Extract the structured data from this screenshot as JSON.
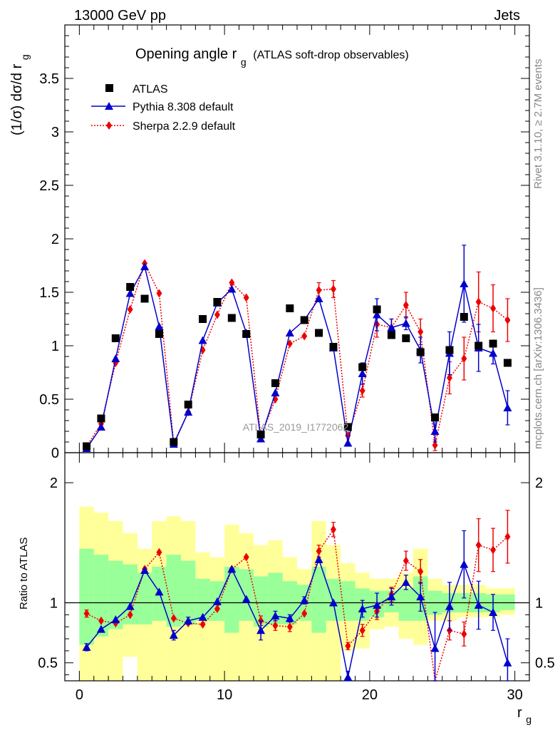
{
  "header": {
    "left": "13000 GeV pp",
    "right": "Jets"
  },
  "side_labels": {
    "top": "Rivet 3.1.10, ≥ 2.7M events",
    "bottom": "mcplots.cern.ch [arXiv:1306.3436]"
  },
  "watermark": "ATLAS_2019_I1772062",
  "chart_data": [
    {
      "type": "line",
      "title_main": "Opening angle r",
      "title_sub": "g",
      "title_extra": "(ATLAS soft-drop observables)",
      "ylabel": "(1/σ) dσ/d r",
      "ylabel_sub": "g",
      "ylim": [
        0,
        4.0
      ],
      "xlim": [
        -1,
        31
      ],
      "yticks": [
        "0",
        "0.5",
        "1",
        "1.5",
        "2",
        "2.5",
        "3",
        "3.5"
      ],
      "yticks_values": [
        0,
        0.5,
        1,
        1.5,
        2,
        2.5,
        3,
        3.5
      ],
      "legend_position": "top-left",
      "x": [
        0.5,
        1.5,
        2.5,
        3.5,
        4.5,
        5.5,
        6.5,
        7.5,
        8.5,
        9.5,
        10.5,
        11.5,
        12.5,
        13.5,
        14.5,
        15.5,
        16.5,
        17.5,
        18.5,
        19.5,
        20.5,
        21.5,
        22.5,
        23.5,
        24.5,
        25.5,
        26.5,
        27.5,
        28.5,
        29.5
      ],
      "series": [
        {
          "name": "ATLAS",
          "color": "#000000",
          "marker": "square",
          "values": [
            0.06,
            0.32,
            1.07,
            1.55,
            1.44,
            1.11,
            0.1,
            0.45,
            1.25,
            1.41,
            1.26,
            1.11,
            0.17,
            0.65,
            1.35,
            1.24,
            1.12,
            0.99,
            0.24,
            0.8,
            1.34,
            1.1,
            1.07,
            0.94,
            0.33,
            0.96,
            1.27,
            1.0,
            1.02,
            0.84
          ]
        },
        {
          "name": "Pythia 8.308 default",
          "color": "#0000cc",
          "marker": "triangle",
          "values": [
            0.04,
            0.24,
            0.88,
            1.49,
            1.74,
            1.18,
            0.08,
            0.38,
            1.05,
            1.4,
            1.53,
            1.12,
            0.13,
            0.56,
            1.12,
            1.24,
            1.44,
            0.98,
            0.09,
            0.74,
            1.29,
            1.17,
            1.21,
            0.96,
            0.2,
            0.93,
            1.58,
            0.98,
            0.93,
            0.42
          ],
          "errors": [
            0,
            0,
            0,
            0,
            0,
            0,
            0,
            0,
            0,
            0,
            0,
            0,
            0,
            0,
            0,
            0,
            0,
            0,
            0,
            0.1,
            0.15,
            0.08,
            0.06,
            0.12,
            0.1,
            0.2,
            0.36,
            0.22,
            0.1,
            0.16
          ]
        },
        {
          "name": "Sherpa 2.2.9 default",
          "color": "#ee0000",
          "marker": "diamond",
          "values": [
            0.06,
            0.27,
            0.84,
            1.34,
            1.77,
            1.49,
            0.09,
            0.38,
            0.96,
            1.29,
            1.59,
            1.45,
            0.15,
            0.5,
            1.02,
            1.09,
            1.52,
            1.53,
            0.16,
            0.58,
            1.2,
            1.17,
            1.38,
            1.13,
            0.07,
            0.7,
            0.88,
            1.41,
            1.35,
            1.24
          ],
          "errors": [
            0,
            0,
            0,
            0,
            0,
            0,
            0,
            0,
            0,
            0,
            0,
            0,
            0,
            0,
            0,
            0,
            0.07,
            0.08,
            0,
            0.06,
            0.12,
            0.08,
            0.12,
            0.12,
            0.05,
            0.15,
            0.2,
            0.28,
            0.22,
            0.2
          ]
        }
      ]
    },
    {
      "type": "line",
      "ylabel": "Ratio to ATLAS",
      "xlabel": "r",
      "xlabel_sub": "g",
      "ylim": [
        0.35,
        2.25
      ],
      "xlim": [
        -1,
        31
      ],
      "yticks": [
        "0.5",
        "1",
        "2"
      ],
      "yticks_values": [
        0.5,
        1,
        2
      ],
      "xticks": [
        "0",
        "10",
        "20",
        "30"
      ],
      "xticks_values": [
        0,
        10,
        20,
        30
      ],
      "reference_line": 1,
      "band_colors": {
        "outer": "#ffff99",
        "inner": "#99ff99"
      },
      "bands": {
        "outer_lo": [
          0.35,
          0.35,
          0.35,
          0.55,
          0.35,
          0.35,
          0.35,
          0.35,
          0.35,
          0.35,
          0.35,
          0.35,
          0.35,
          0.35,
          0.35,
          0.35,
          0.35,
          0.35,
          0.6,
          0.62,
          0.78,
          0.8,
          0.7,
          0.65,
          0.85,
          0.85,
          0.88,
          0.88,
          0.88,
          0.9
        ],
        "outer_hi": [
          1.8,
          1.75,
          1.68,
          1.58,
          1.45,
          1.68,
          1.72,
          1.68,
          1.42,
          1.38,
          1.65,
          1.58,
          1.48,
          1.52,
          1.38,
          1.28,
          1.68,
          1.48,
          1.33,
          1.25,
          1.2,
          1.2,
          1.25,
          1.45,
          1.2,
          1.15,
          1.15,
          1.15,
          1.12,
          1.12
        ],
        "inner_lo": [
          0.65,
          0.72,
          0.78,
          0.82,
          0.82,
          0.85,
          0.8,
          0.82,
          0.85,
          0.85,
          0.75,
          0.85,
          0.8,
          0.82,
          0.82,
          0.85,
          0.75,
          0.85,
          0.85,
          0.85,
          0.88,
          0.92,
          0.85,
          0.85,
          0.9,
          0.92,
          0.92,
          0.92,
          0.92,
          0.94
        ],
        "inner_hi": [
          1.45,
          1.4,
          1.35,
          1.32,
          1.25,
          1.3,
          1.4,
          1.35,
          1.2,
          1.18,
          1.3,
          1.28,
          1.22,
          1.25,
          1.18,
          1.15,
          1.3,
          1.2,
          1.18,
          1.12,
          1.1,
          1.1,
          1.12,
          1.22,
          1.1,
          1.08,
          1.08,
          1.08,
          1.07,
          1.07
        ]
      },
      "series": [
        {
          "name": "Pythia 8.308 default",
          "values": [
            0.63,
            0.78,
            0.86,
            0.97,
            1.27,
            1.09,
            0.73,
            0.85,
            0.88,
            1.01,
            1.28,
            1.03,
            0.77,
            0.89,
            0.87,
            1.02,
            1.36,
            1.0,
            0.38,
            0.95,
            0.98,
            1.05,
            1.17,
            1.05,
            0.62,
            0.97,
            1.32,
            0.98,
            0.92,
            0.5
          ],
          "errors": [
            0.03,
            0,
            0,
            0,
            0,
            0,
            0.04,
            0.03,
            0,
            0,
            0,
            0,
            0.08,
            0.04,
            0.03,
            0.03,
            0,
            0,
            0.05,
            0.07,
            0.1,
            0.07,
            0.06,
            0.12,
            0.3,
            0.2,
            0.28,
            0.2,
            0.15,
            0.2
          ]
        },
        {
          "name": "Sherpa 2.2.9 default",
          "values": [
            0.91,
            0.85,
            0.83,
            0.9,
            1.28,
            1.42,
            0.87,
            0.83,
            0.82,
            0.95,
            1.28,
            1.38,
            0.85,
            0.81,
            0.8,
            0.91,
            1.43,
            1.61,
            0.64,
            0.77,
            0.93,
            1.07,
            1.35,
            1.26,
            0.2,
            0.77,
            0.74,
            1.48,
            1.44,
            1.55
          ],
          "errors": [
            0.03,
            0,
            0,
            0,
            0,
            0,
            0,
            0,
            0,
            0,
            0,
            0,
            0.04,
            0.04,
            0.04,
            0,
            0.05,
            0.06,
            0.03,
            0.05,
            0.07,
            0.06,
            0.08,
            0.1,
            0.1,
            0.08,
            0.1,
            0.22,
            0.18,
            0.22
          ]
        }
      ]
    }
  ]
}
